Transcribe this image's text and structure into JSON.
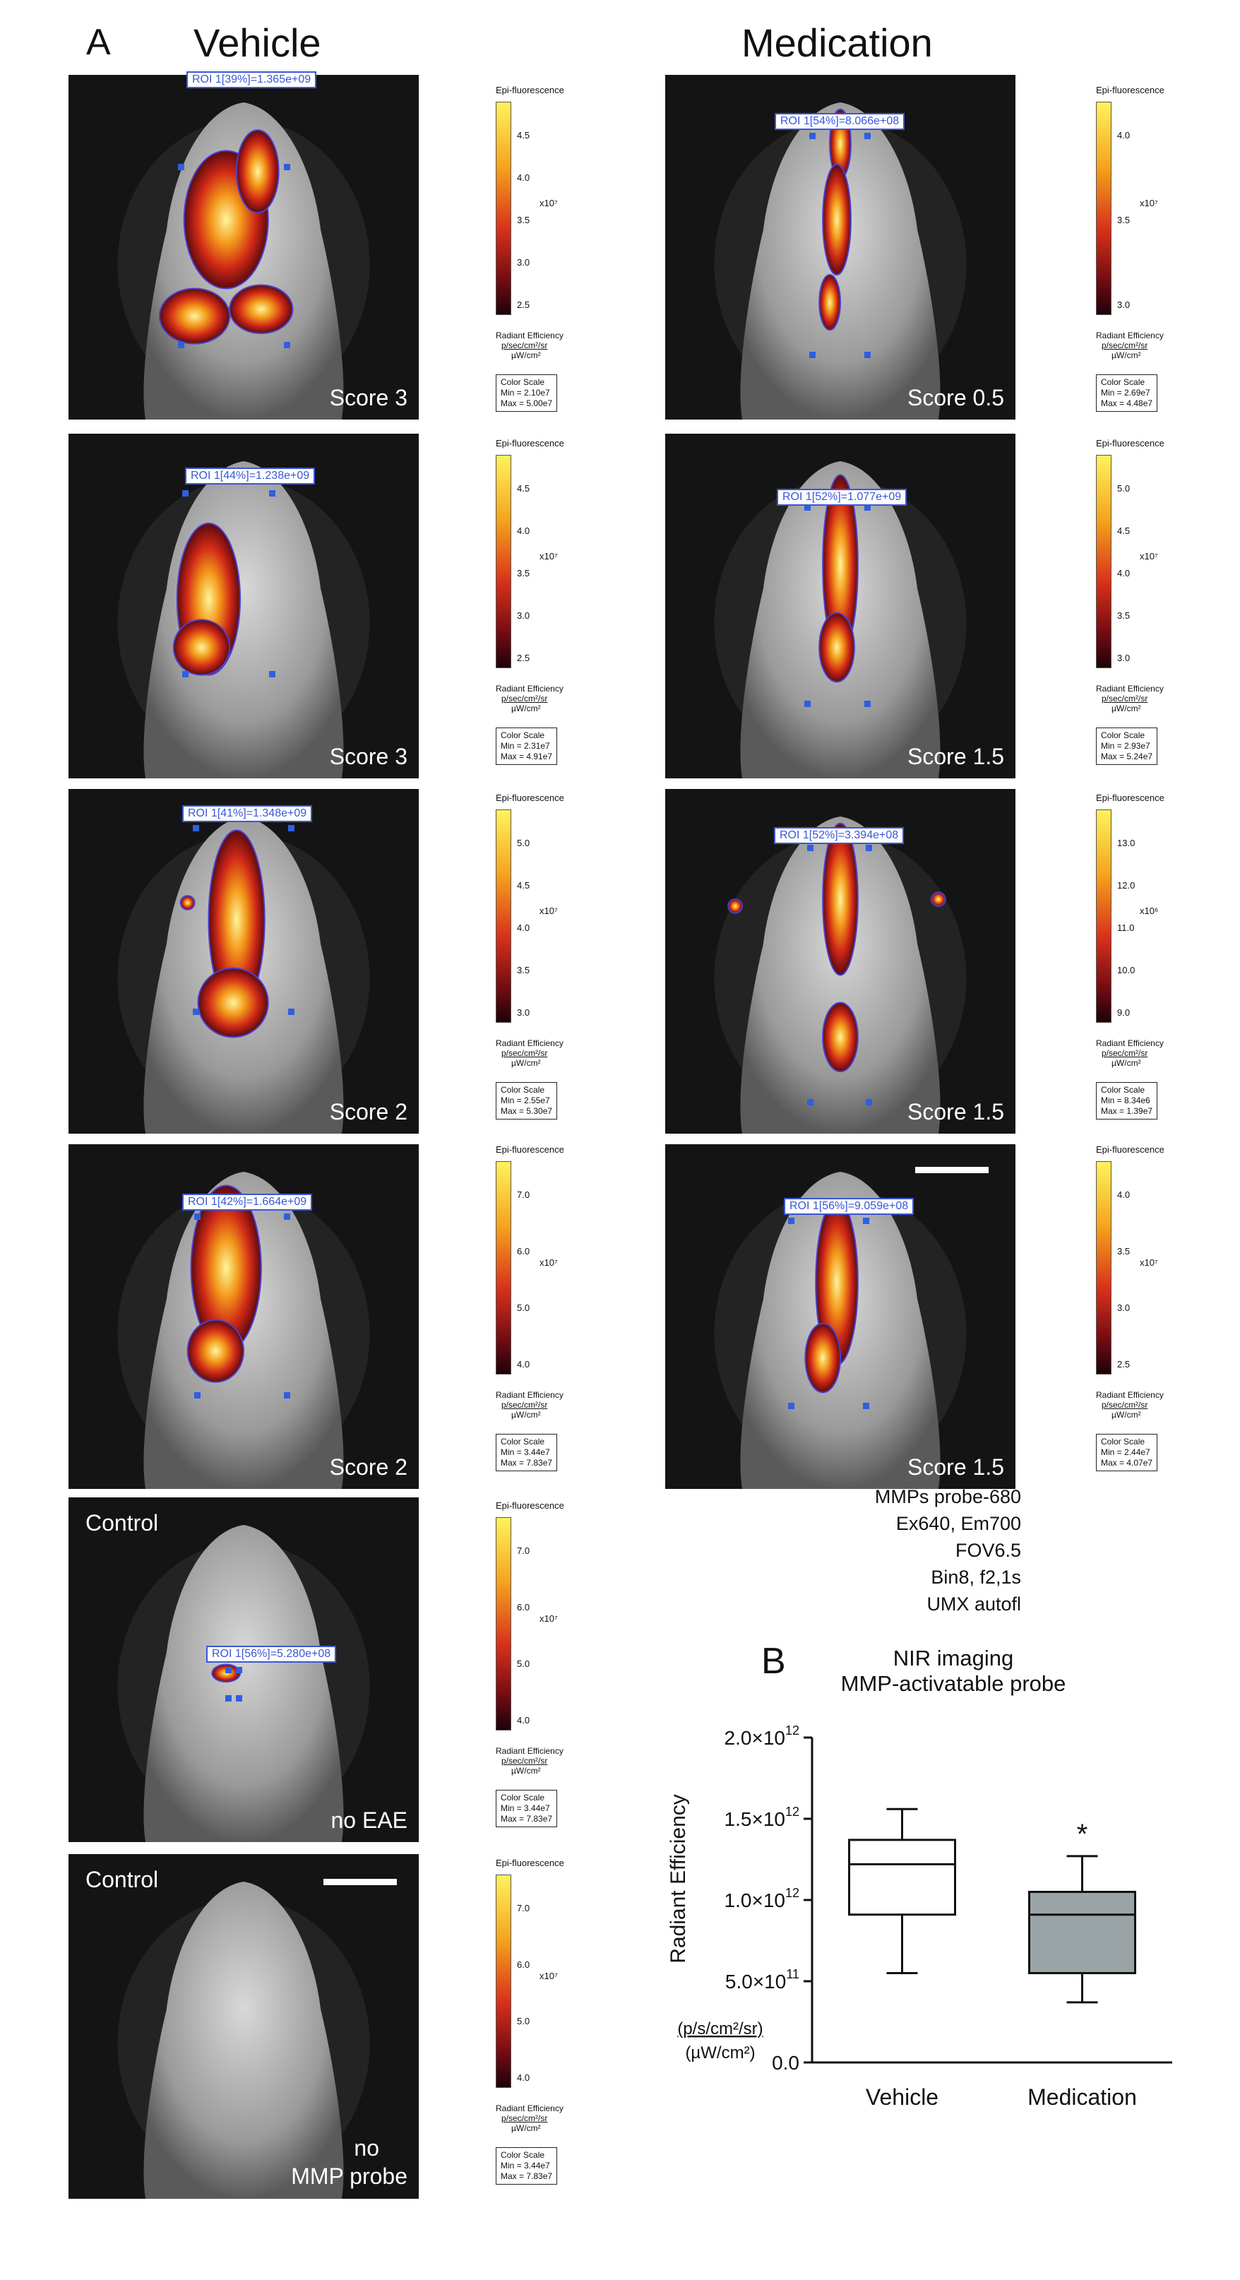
{
  "panel_a_label": "A",
  "panel_b_label": "B",
  "vehicle_title": "Vehicle",
  "medication_title": "Medication",
  "colorbar_title": "Epi-fluorescence",
  "radiant_efficiency_label": "Radiant Efficiency",
  "radiant_units_num": "p/sec/cm²/sr",
  "radiant_units_den": "µW/cm²",
  "color_scale_label": "Color Scale",
  "tiles": [
    {
      "id": "v1",
      "score": "Score 3",
      "roi": "ROI 1[39%]=1.365e+09",
      "cb_ticks": [
        "4.5",
        "4.0",
        "3.5",
        "3.0",
        "2.5"
      ],
      "cb_mult": "x10⁷",
      "cs_min": "Min = 2.10e7",
      "cs_max": "Max = 5.00e7"
    },
    {
      "id": "v2",
      "score": "Score 3",
      "roi": "ROI 1[44%]=1.238e+09",
      "cb_ticks": [
        "4.5",
        "4.0",
        "3.5",
        "3.0",
        "2.5"
      ],
      "cb_mult": "x10⁷",
      "cs_min": "Min = 2.31e7",
      "cs_max": "Max = 4.91e7"
    },
    {
      "id": "v3",
      "score": "Score 2",
      "roi": "ROI 1[41%]=1.348e+09",
      "cb_ticks": [
        "5.0",
        "4.5",
        "4.0",
        "3.5",
        "3.0"
      ],
      "cb_mult": "x10⁷",
      "cs_min": "Min = 2.55e7",
      "cs_max": "Max = 5.30e7"
    },
    {
      "id": "v4",
      "score": "Score 2",
      "roi": "ROI 1[42%]=1.664e+09",
      "cb_ticks": [
        "7.0",
        "6.0",
        "5.0",
        "4.0"
      ],
      "cb_mult": "x10⁷",
      "cs_min": "Min = 3.44e7",
      "cs_max": "Max = 7.83e7"
    },
    {
      "id": "c1",
      "label": "Control",
      "score": "no EAE",
      "roi": "ROI 1[56%]=5.280e+08",
      "cb_ticks": [
        "7.0",
        "6.0",
        "5.0",
        "4.0"
      ],
      "cb_mult": "x10⁷",
      "cs_min": "Min = 3.44e7",
      "cs_max": "Max = 7.83e7"
    },
    {
      "id": "c2",
      "label": "Control",
      "score_line1": "no",
      "score_line2": "MMP probe",
      "cb_ticks": [
        "7.0",
        "6.0",
        "5.0",
        "4.0"
      ],
      "cb_mult": "x10⁷",
      "cs_min": "Min = 3.44e7",
      "cs_max": "Max = 7.83e7"
    },
    {
      "id": "m1",
      "score": "Score 0.5",
      "roi": "ROI 1[54%]=8.066e+08",
      "cb_ticks": [
        "4.0",
        "3.5",
        "3.0"
      ],
      "cb_mult": "x10⁷",
      "cs_min": "Min = 2.69e7",
      "cs_max": "Max = 4.48e7"
    },
    {
      "id": "m2",
      "score": "Score 1.5",
      "roi": "ROI 1[52%]=1.077e+09",
      "cb_ticks": [
        "5.0",
        "4.5",
        "4.0",
        "3.5",
        "3.0"
      ],
      "cb_mult": "x10⁷",
      "cs_min": "Min = 2.93e7",
      "cs_max": "Max = 5.24e7"
    },
    {
      "id": "m3",
      "score": "Score 1.5",
      "roi": "ROI 1[52%]=3.394e+08",
      "cb_ticks": [
        "13.0",
        "12.0",
        "11.0",
        "10.0",
        "9.0"
      ],
      "cb_mult": "x10⁶",
      "cs_min": "Min = 8.34e6",
      "cs_max": "Max = 1.39e7"
    },
    {
      "id": "m4",
      "score": "Score 1.5",
      "roi": "ROI 1[56%]=9.059e+08",
      "cb_ticks": [
        "4.0",
        "3.5",
        "3.0",
        "2.5"
      ],
      "cb_mult": "x10⁷",
      "cs_min": "Min = 2.44e7",
      "cs_max": "Max = 4.07e7"
    }
  ],
  "imaging_params": [
    "MMPs probe-680",
    "Ex640, Em700",
    "FOV6.5",
    "Bin8, f2,1s",
    "UMX autofl"
  ],
  "chart_data": {
    "type": "box",
    "title": "NIR imaging\nMMP-activatable probe",
    "title_line1": "NIR imaging",
    "title_line2": "MMP-activatable probe",
    "ylabel": "Radiant Efficiency",
    "yunit_num": "(p/s/cm²/sr)",
    "yunit_den": "(µW/cm²)",
    "ylim": [
      0,
      2000000000000.0
    ],
    "yticks": [
      {
        "value": 0,
        "label": "0.0"
      },
      {
        "value": 500000000000.0,
        "label": "5.0×10",
        "exp": "11"
      },
      {
        "value": 1000000000000.0,
        "label": "1.0×10",
        "exp": "12"
      },
      {
        "value": 1500000000000.0,
        "label": "1.5×10",
        "exp": "12"
      },
      {
        "value": 2000000000000.0,
        "label": "2.0×10",
        "exp": "12"
      }
    ],
    "categories": [
      "Vehicle",
      "Medication"
    ],
    "boxes": [
      {
        "category": "Vehicle",
        "min": 550000000000.0,
        "q1": 910000000000.0,
        "median": 1220000000000.0,
        "q3": 1370000000000.0,
        "max": 1560000000000.0,
        "fill": "#ffffff"
      },
      {
        "category": "Medication",
        "min": 370000000000.0,
        "q1": 550000000000.0,
        "median": 910000000000.0,
        "q3": 1050000000000.0,
        "max": 1270000000000.0,
        "fill": "#9aa4a6"
      }
    ],
    "annotation": "*",
    "annotation_category": "Medication"
  }
}
